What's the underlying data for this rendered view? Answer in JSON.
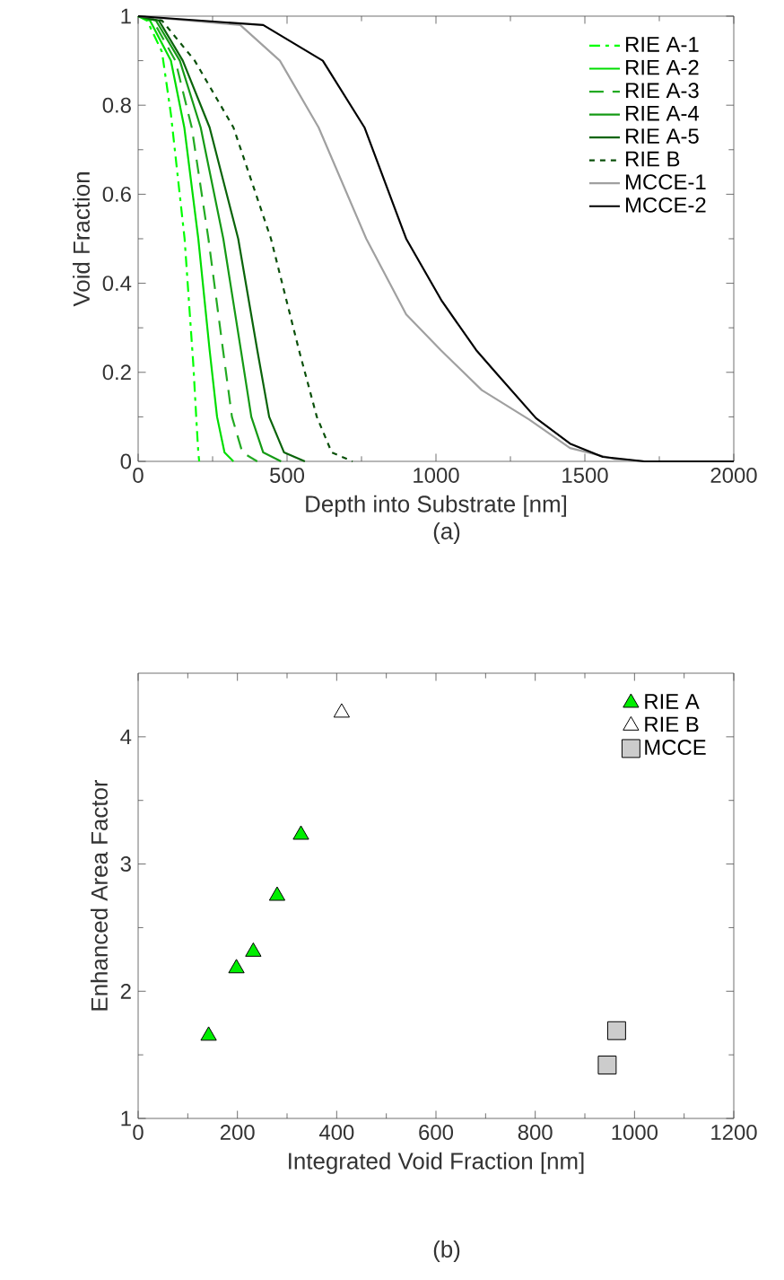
{
  "chart_data": [
    {
      "type": "line",
      "xlabel": "Depth into Substrate [nm]",
      "ylabel": "Void Fraction",
      "annotations": [
        "(a)"
      ],
      "xlim": [
        0,
        2000
      ],
      "ylim": [
        0,
        1
      ],
      "xticks": [
        0,
        500,
        1000,
        1500,
        2000
      ],
      "yticks": [
        0,
        0.2,
        0.4,
        0.6,
        0.8,
        1
      ],
      "legend": "top right",
      "series": [
        {
          "name": "RIE A-1",
          "color": "#00ff00",
          "line_style": "dashdot",
          "x": [
            0,
            30,
            80,
            110,
            156,
            185,
            195,
            202,
            205
          ],
          "values": [
            1,
            0.99,
            0.92,
            0.78,
            0.5,
            0.22,
            0.1,
            0.02,
            0
          ]
        },
        {
          "name": "RIE A-2",
          "color": "#00dd00",
          "line_style": "solid",
          "x": [
            0,
            40,
            110,
            155,
            202,
            240,
            265,
            290,
            320
          ],
          "values": [
            1,
            0.99,
            0.9,
            0.75,
            0.5,
            0.25,
            0.1,
            0.02,
            0
          ]
        },
        {
          "name": "RIE A-3",
          "color": "#22aa22",
          "line_style": "dashed",
          "x": [
            0,
            50,
            125,
            180,
            236,
            285,
            315,
            350,
            400
          ],
          "values": [
            1,
            0.99,
            0.9,
            0.75,
            0.5,
            0.25,
            0.1,
            0.02,
            0
          ]
        },
        {
          "name": "RIE A-4",
          "color": "#159a15",
          "line_style": "solid",
          "x": [
            0,
            60,
            140,
            210,
            286,
            345,
            380,
            420,
            480
          ],
          "values": [
            1,
            0.99,
            0.9,
            0.75,
            0.5,
            0.25,
            0.1,
            0.02,
            0
          ]
        },
        {
          "name": "RIE A-5",
          "color": "#0a640a",
          "line_style": "solid",
          "x": [
            0,
            70,
            150,
            240,
            336,
            400,
            440,
            490,
            560
          ],
          "values": [
            1,
            0.99,
            0.9,
            0.75,
            0.5,
            0.25,
            0.1,
            0.02,
            0
          ]
        },
        {
          "name": "RIE B",
          "color": "#0a500a",
          "line_style": "dotted",
          "x": [
            0,
            80,
            190,
            320,
            446,
            540,
            600,
            650,
            720
          ],
          "values": [
            1,
            0.99,
            0.9,
            0.75,
            0.5,
            0.25,
            0.1,
            0.02,
            0
          ]
        },
        {
          "name": "MCCE-1",
          "color": "#a0a0a0",
          "line_style": "solid",
          "x": [
            0,
            343,
            476,
            606,
            766,
            900,
            1016,
            1154,
            1313,
            1450,
            1600,
            1700
          ],
          "values": [
            1,
            0.98,
            0.9,
            0.75,
            0.5,
            0.33,
            0.25,
            0.16,
            0.094,
            0.03,
            0.005,
            0
          ]
        },
        {
          "name": "MCCE-2",
          "color": "#000000",
          "line_style": "solid",
          "x": [
            0,
            420,
            620,
            760,
            900,
            1020,
            1135,
            1200,
            1336,
            1450,
            1560,
            1700,
            2000
          ],
          "values": [
            1,
            0.98,
            0.9,
            0.75,
            0.5,
            0.36,
            0.25,
            0.2,
            0.097,
            0.04,
            0.01,
            0,
            0
          ]
        }
      ]
    },
    {
      "type": "scatter",
      "xlabel": "Integrated Void Fraction [nm]",
      "ylabel": "Enhanced Area Factor",
      "annotations": [
        "(b)"
      ],
      "xlim": [
        0,
        1200
      ],
      "ylim": [
        1,
        4.5
      ],
      "xticks": [
        0,
        200,
        400,
        600,
        800,
        1000,
        1200
      ],
      "yticks": [
        1,
        2,
        3,
        4
      ],
      "legend": "top right",
      "series": [
        {
          "name": "RIE A",
          "color": "#00ee00",
          "marker": "triangle",
          "x": [
            142,
            198,
            232,
            280,
            328
          ],
          "values": [
            1.65,
            2.18,
            2.31,
            2.75,
            3.23
          ]
        },
        {
          "name": "RIE B",
          "color": "#ffffff",
          "marker": "triangle",
          "x": [
            410
          ],
          "values": [
            4.19
          ]
        },
        {
          "name": "MCCE",
          "color": "#cccccc",
          "marker": "square",
          "x": [
            945,
            964
          ],
          "values": [
            1.42,
            1.69
          ]
        }
      ]
    }
  ]
}
